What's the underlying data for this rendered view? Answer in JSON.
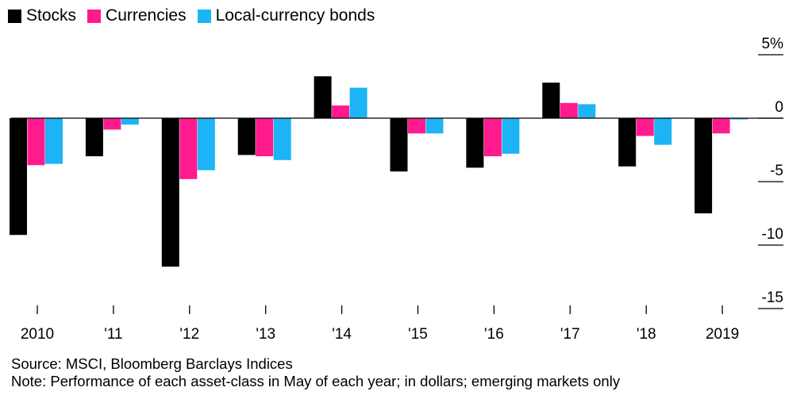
{
  "chart_data": {
    "type": "bar",
    "categories": [
      "2010",
      "'11",
      "'12",
      "'13",
      "'14",
      "'15",
      "'16",
      "'17",
      "'18",
      "2019"
    ],
    "series": [
      {
        "name": "Stocks",
        "color": "#000000",
        "values": [
          -9.2,
          -3.0,
          -11.7,
          -2.9,
          3.3,
          -4.2,
          -3.9,
          2.8,
          -3.8,
          -7.5
        ]
      },
      {
        "name": "Currencies",
        "color": "#ff1b8d",
        "values": [
          -3.7,
          -0.9,
          -4.8,
          -3.0,
          1.0,
          -1.2,
          -3.0,
          1.2,
          -1.4,
          -1.2
        ]
      },
      {
        "name": "Local-currency bonds",
        "color": "#1cb4f5",
        "values": [
          -3.6,
          -0.5,
          -4.1,
          -3.3,
          2.4,
          -1.2,
          -2.8,
          1.1,
          -2.1,
          -0.1
        ]
      }
    ],
    "y_ticks": [
      {
        "value": 5,
        "label": "5%"
      },
      {
        "value": 0,
        "label": "0"
      },
      {
        "value": -5,
        "label": "-5"
      },
      {
        "value": -10,
        "label": "-10"
      },
      {
        "value": -15,
        "label": "-15"
      }
    ],
    "ylim": [
      -15,
      5
    ],
    "grid": false,
    "legend_position": "top-left"
  },
  "footer": {
    "source": "Source: MSCI, Bloomberg Barclays Indices",
    "note": "Note: Performance of each asset-class in May of each year; in dollars; emerging markets only"
  }
}
